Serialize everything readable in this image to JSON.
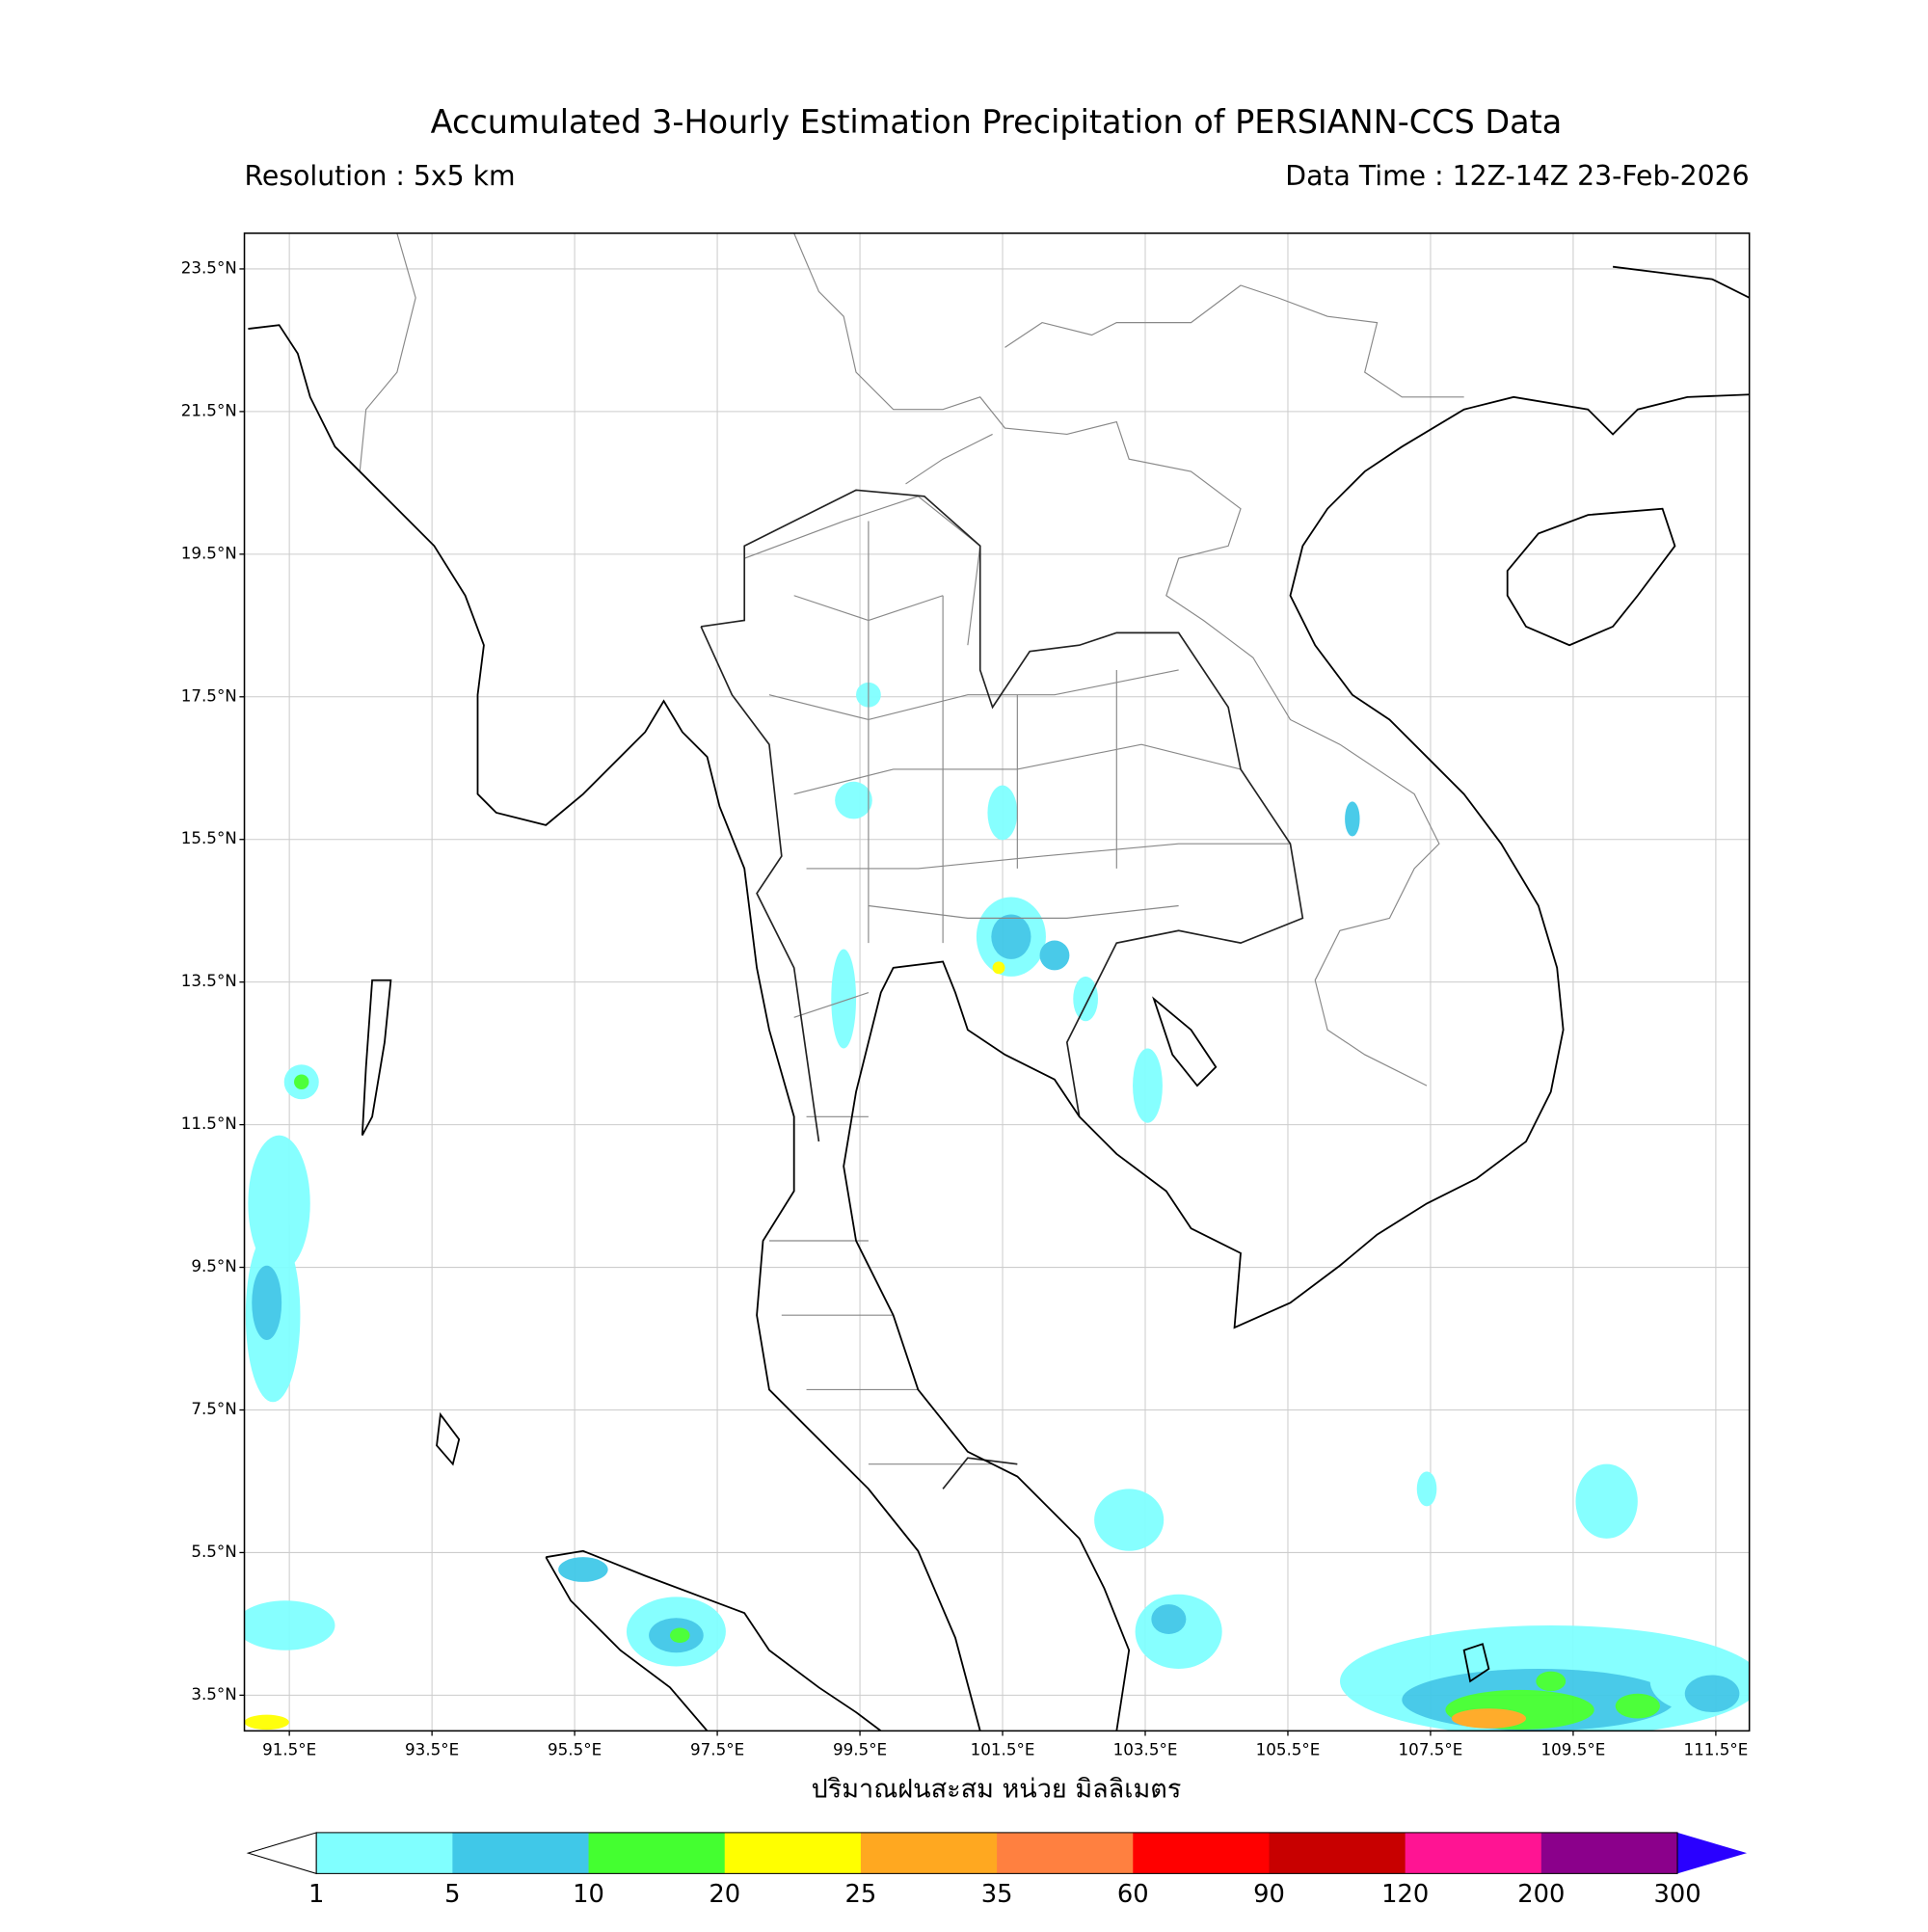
{
  "header": {
    "title": "Accumulated 3-Hourly Estimation Precipitation of PERSIANN-CCS Data",
    "resolution": "Resolution : 5x5 km",
    "data_time": "Data Time : 12Z-14Z 23-Feb-2026"
  },
  "map": {
    "xlim": [
      90.87,
      111.97
    ],
    "ylim": [
      3.0,
      24.0
    ],
    "grid": true,
    "lat_ticks": [
      {
        "value": 23.5,
        "label": "23.5°N"
      },
      {
        "value": 21.5,
        "label": "21.5°N"
      },
      {
        "value": 19.5,
        "label": "19.5°N"
      },
      {
        "value": 17.5,
        "label": "17.5°N"
      },
      {
        "value": 15.5,
        "label": "15.5°N"
      },
      {
        "value": 13.5,
        "label": "13.5°N"
      },
      {
        "value": 11.5,
        "label": "11.5°N"
      },
      {
        "value": 9.5,
        "label": "9.5°N"
      },
      {
        "value": 7.5,
        "label": "7.5°N"
      },
      {
        "value": 5.5,
        "label": "5.5°N"
      },
      {
        "value": 3.5,
        "label": "3.5°N"
      }
    ],
    "lon_ticks": [
      {
        "value": 91.5,
        "label": "91.5°E"
      },
      {
        "value": 93.5,
        "label": "93.5°E"
      },
      {
        "value": 95.5,
        "label": "95.5°E"
      },
      {
        "value": 97.5,
        "label": "97.5°E"
      },
      {
        "value": 99.5,
        "label": "99.5°E"
      },
      {
        "value": 101.5,
        "label": "101.5°E"
      },
      {
        "value": 103.5,
        "label": "103.5°E"
      },
      {
        "value": 105.5,
        "label": "105.5°E"
      },
      {
        "value": 107.5,
        "label": "107.5°E"
      },
      {
        "value": 109.5,
        "label": "109.5°E"
      },
      {
        "value": 111.5,
        "label": "111.5°E"
      }
    ],
    "xlabel": "ปริมาณฝนสะสม หน่วย มิลลิเมตร"
  },
  "colorbar": {
    "levels": [
      1,
      5,
      10,
      20,
      25,
      35,
      60,
      90,
      120,
      200,
      300
    ],
    "colors": [
      "#80ffff",
      "#40c8e8",
      "#44ff30",
      "#ffff00",
      "#ffa820",
      "#ff8040",
      "#ff0000",
      "#c80000",
      "#ff1493",
      "#8b008b"
    ],
    "under_color": "#ffffff",
    "over_color": "#2a00ff"
  }
}
